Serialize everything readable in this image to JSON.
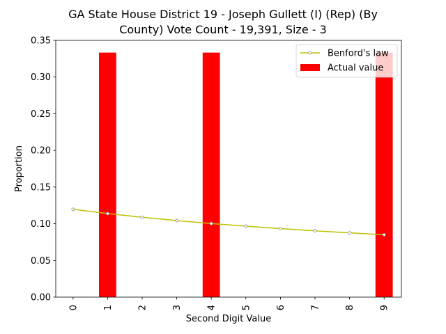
{
  "chart_data": {
    "type": "bar",
    "title_line1": "GA State House District 19 - Joseph Gullett (I) (Rep) (By",
    "title_line2": "County) Vote Count - 19,391, Size - 3",
    "xlabel": "Second Digit Value",
    "ylabel": "Proportion",
    "categories": [
      "0",
      "1",
      "2",
      "3",
      "4",
      "5",
      "6",
      "7",
      "8",
      "9"
    ],
    "ylim": [
      0,
      0.35
    ],
    "yticks": [
      "0.00",
      "0.05",
      "0.10",
      "0.15",
      "0.20",
      "0.25",
      "0.30",
      "0.35"
    ],
    "grid": false,
    "legend_position": "top-right",
    "series": [
      {
        "name": "Actual value",
        "kind": "bar",
        "color": "#ff0000",
        "values": [
          0,
          0.3333,
          0,
          0,
          0.3333,
          0,
          0,
          0,
          0,
          0.3333
        ]
      },
      {
        "name": "Benford's law",
        "kind": "line",
        "color": "#bfbf00",
        "values": [
          0.1197,
          0.1139,
          0.1088,
          0.1043,
          0.1003,
          0.0967,
          0.0934,
          0.0904,
          0.0876,
          0.085
        ]
      }
    ]
  }
}
